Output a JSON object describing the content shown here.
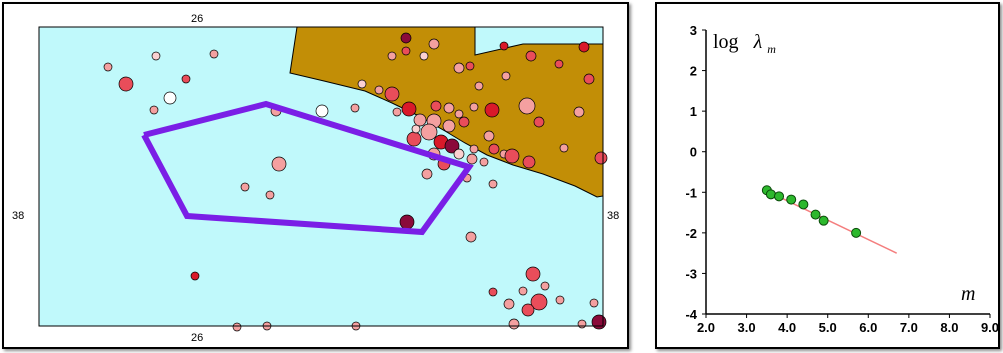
{
  "chart_data": [
    {
      "type": "map",
      "longitude_label": "26",
      "latitude_label": "38",
      "colors": {
        "sea": "#c0f9fb",
        "land": "#c28e06",
        "polygon": "#7a1fe6",
        "outline": "#000000"
      }
    },
    {
      "type": "scatter",
      "ylabel_text": "log",
      "ylabel_symbol": "λ",
      "ylabel_subscript": "m",
      "xlabel": "m",
      "xlim": [
        2.0,
        9.0
      ],
      "ylim": [
        -4,
        3
      ],
      "x_ticks": [
        "2.0",
        "3.0",
        "4.0",
        "5.0",
        "6.0",
        "7.0",
        "8.0",
        "9.0"
      ],
      "y_ticks": [
        "3",
        "2",
        "1",
        "0",
        "-1",
        "-2",
        "-3",
        "-4"
      ],
      "points": [
        {
          "x": 3.5,
          "y": -0.95
        },
        {
          "x": 3.6,
          "y": -1.05
        },
        {
          "x": 3.8,
          "y": -1.1
        },
        {
          "x": 4.1,
          "y": -1.18
        },
        {
          "x": 4.4,
          "y": -1.3
        },
        {
          "x": 4.7,
          "y": -1.55
        },
        {
          "x": 4.9,
          "y": -1.7
        },
        {
          "x": 5.7,
          "y": -2.0
        }
      ],
      "fit_line": {
        "x": [
          3.5,
          6.7
        ],
        "y": [
          -0.97,
          -2.5
        ]
      },
      "colors": {
        "points": "#2db82d",
        "point_edge": "#0a4a0a",
        "fit": "#f47e7e"
      }
    }
  ]
}
